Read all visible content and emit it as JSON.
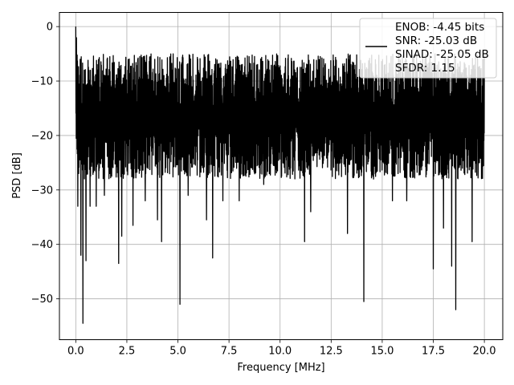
{
  "chart_data": {
    "type": "line",
    "title": "",
    "xlabel": "Frequency [MHz]",
    "ylabel": "PSD [dB]",
    "xlim": [
      -0.8,
      20.9
    ],
    "ylim": [
      -57.5,
      2.6
    ],
    "xticks": [
      0.0,
      2.5,
      5.0,
      7.5,
      10.0,
      12.5,
      15.0,
      17.5,
      20.0
    ],
    "xtick_labels": [
      "0.0",
      "2.5",
      "5.0",
      "7.5",
      "10.0",
      "12.5",
      "15.0",
      "17.5",
      "20.0"
    ],
    "yticks": [
      0,
      -10,
      -20,
      -30,
      -40,
      -50
    ],
    "ytick_labels": [
      "0",
      "−10",
      "−20",
      "−30",
      "−40",
      "−50"
    ],
    "grid": true,
    "legend_position": "top-right",
    "legend_lines": [
      "ENOB: -4.45 bits",
      "SNR: -25.03 dB",
      "SINAD: -25.05 dB",
      "SFDR: 1.15"
    ],
    "line_color": "#000000",
    "series": [
      {
        "x_range": [
          0,
          20
        ],
        "points_description": "dense noise floor between about -5 and -28 dB",
        "envelope_upper": -5,
        "envelope_lower": -28,
        "peak": {
          "x": 0.0,
          "y": 0
        },
        "dips": [
          {
            "x": 0.1,
            "y": -33
          },
          {
            "x": 0.25,
            "y": -42
          },
          {
            "x": 0.35,
            "y": -54.5
          },
          {
            "x": 0.5,
            "y": -43
          },
          {
            "x": 0.7,
            "y": -33
          },
          {
            "x": 1.0,
            "y": -33
          },
          {
            "x": 1.4,
            "y": -31
          },
          {
            "x": 2.1,
            "y": -43.5
          },
          {
            "x": 2.25,
            "y": -38.5
          },
          {
            "x": 2.8,
            "y": -36.5
          },
          {
            "x": 3.4,
            "y": -32
          },
          {
            "x": 4.0,
            "y": -35.5
          },
          {
            "x": 4.2,
            "y": -39.5
          },
          {
            "x": 5.1,
            "y": -51
          },
          {
            "x": 5.5,
            "y": -31
          },
          {
            "x": 6.4,
            "y": -35.5
          },
          {
            "x": 6.7,
            "y": -42.5
          },
          {
            "x": 7.2,
            "y": -32
          },
          {
            "x": 8.0,
            "y": -32
          },
          {
            "x": 9.2,
            "y": -29
          },
          {
            "x": 11.2,
            "y": -39.5
          },
          {
            "x": 11.5,
            "y": -34
          },
          {
            "x": 13.3,
            "y": -38
          },
          {
            "x": 14.1,
            "y": -50.5
          },
          {
            "x": 15.5,
            "y": -32
          },
          {
            "x": 16.2,
            "y": -32
          },
          {
            "x": 17.5,
            "y": -44.5
          },
          {
            "x": 18.0,
            "y": -37
          },
          {
            "x": 18.4,
            "y": -44
          },
          {
            "x": 18.6,
            "y": -52
          },
          {
            "x": 19.4,
            "y": -39.5
          },
          {
            "x": 19.7,
            "y": -25
          }
        ]
      }
    ]
  }
}
